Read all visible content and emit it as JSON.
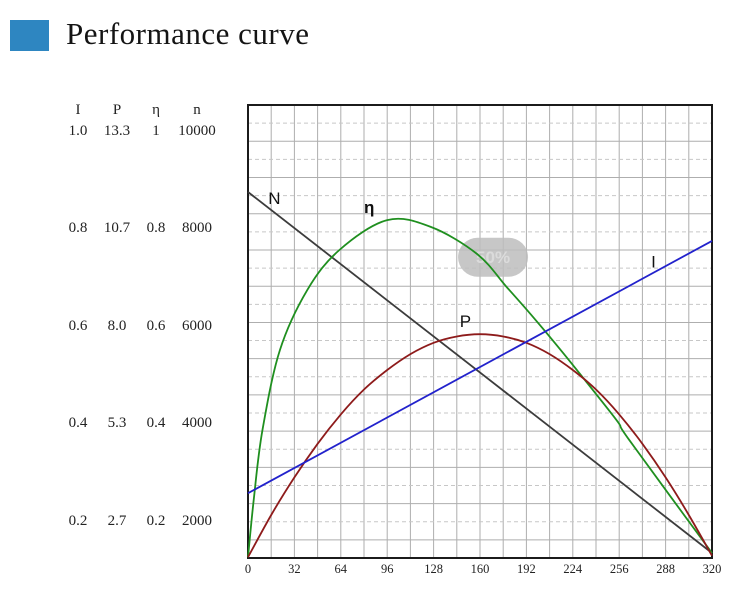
{
  "title": "Performance curve",
  "accent_color": "#2E86C1",
  "axis_table": {
    "headers": [
      "I",
      "P",
      "η",
      "n"
    ],
    "rows": [
      [
        "1.0",
        "13.3",
        "1",
        "10000"
      ],
      [
        "0.8",
        "10.7",
        "0.8",
        "8000"
      ],
      [
        "0.6",
        "8.0",
        "0.6",
        "6000"
      ],
      [
        "0.4",
        "5.3",
        "0.4",
        "4000"
      ],
      [
        "0.2",
        "2.7",
        "0.2",
        "2000"
      ]
    ]
  },
  "chart_data": {
    "type": "line",
    "title": "Performance curve",
    "xlabel": "",
    "ylabel": "",
    "x_range": [
      0,
      320
    ],
    "x_ticks": [
      0,
      32,
      64,
      96,
      128,
      160,
      192,
      224,
      256,
      288,
      320
    ],
    "y_norm_range": [
      0,
      1
    ],
    "grid": true,
    "legend_position": "inline-labels",
    "series": [
      {
        "name": "N",
        "kind": "straight",
        "color": "#3c3c3c",
        "label_pos": {
          "x": 14,
          "y": 0.795
        },
        "points": [
          [
            0,
            0.808
          ],
          [
            320,
            0.011
          ]
        ]
      },
      {
        "name": "η",
        "kind": "curve",
        "color": "#1f8f1f",
        "label_pos": {
          "x": 80,
          "y": 0.775
        },
        "points": [
          [
            0,
            0.002
          ],
          [
            4,
            0.13
          ],
          [
            10,
            0.283
          ],
          [
            22,
            0.459
          ],
          [
            41,
            0.592
          ],
          [
            63,
            0.68
          ],
          [
            96,
            0.746
          ],
          [
            126,
            0.731
          ],
          [
            158,
            0.671
          ],
          [
            179,
            0.596
          ],
          [
            199,
            0.523
          ],
          [
            223,
            0.43
          ],
          [
            254,
            0.305
          ],
          [
            263,
            0.26
          ],
          [
            320,
            0.011
          ]
        ]
      },
      {
        "name": "P",
        "kind": "curve",
        "color": "#8e1b1b",
        "label_pos": {
          "x": 146,
          "y": 0.523
        },
        "points": [
          [
            0,
            0.002
          ],
          [
            16,
            0.095
          ],
          [
            32,
            0.178
          ],
          [
            48,
            0.252
          ],
          [
            64,
            0.317
          ],
          [
            80,
            0.372
          ],
          [
            96,
            0.415
          ],
          [
            112,
            0.45
          ],
          [
            128,
            0.475
          ],
          [
            144,
            0.489
          ],
          [
            160,
            0.494
          ],
          [
            176,
            0.489
          ],
          [
            192,
            0.475
          ],
          [
            208,
            0.45
          ],
          [
            224,
            0.415
          ],
          [
            240,
            0.372
          ],
          [
            256,
            0.317
          ],
          [
            272,
            0.252
          ],
          [
            288,
            0.178
          ],
          [
            304,
            0.095
          ],
          [
            320,
            0.005
          ]
        ]
      },
      {
        "name": "I",
        "kind": "straight",
        "color": "#2222cc",
        "label_pos": {
          "x": 278,
          "y": 0.655
        },
        "points": [
          [
            0,
            0.143
          ],
          [
            320,
            0.7
          ]
        ]
      }
    ],
    "watermark": {
      "text": "50%",
      "x": 169,
      "y": 0.664
    }
  }
}
